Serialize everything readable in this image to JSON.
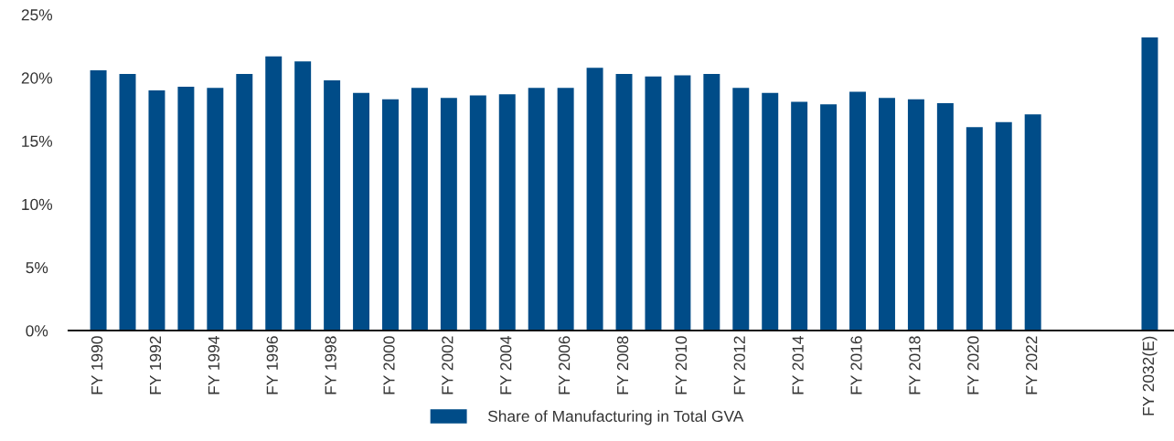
{
  "chart_data": {
    "type": "bar",
    "categories": [
      "FY 1990",
      null,
      "FY 1992",
      null,
      "FY 1994",
      null,
      "FY 1996",
      null,
      "FY 1998",
      null,
      "FY 2000",
      null,
      "FY 2002",
      null,
      "FY 2004",
      null,
      "FY 2006",
      null,
      "FY 2008",
      null,
      "FY 2010",
      null,
      "FY 2012",
      null,
      "FY 2014",
      null,
      "FY 2016",
      null,
      "FY 2018",
      null,
      "FY 2020",
      null,
      "FY 2022",
      null,
      null,
      null,
      "FY 2032(E)"
    ],
    "series": [
      {
        "name": "Share of Manufacturing in Total GVA",
        "color": "#004c88",
        "values": [
          20.6,
          20.3,
          19.0,
          19.3,
          19.2,
          20.3,
          21.7,
          21.3,
          19.8,
          18.8,
          18.3,
          19.2,
          18.4,
          18.6,
          18.7,
          19.2,
          19.2,
          20.8,
          20.3,
          20.1,
          20.2,
          20.3,
          19.2,
          18.8,
          18.1,
          17.9,
          18.9,
          18.4,
          18.3,
          18.0,
          16.1,
          16.5,
          17.1,
          null,
          null,
          null,
          23.2
        ]
      }
    ],
    "ylim": [
      0,
      25
    ],
    "yticks": [
      {
        "value": 0,
        "label": "0%"
      },
      {
        "value": 5,
        "label": "5%"
      },
      {
        "value": 10,
        "label": "10%"
      },
      {
        "value": 15,
        "label": "15%"
      },
      {
        "value": 20,
        "label": "20%"
      },
      {
        "value": 25,
        "label": "25%"
      }
    ],
    "legend": "bottom"
  }
}
